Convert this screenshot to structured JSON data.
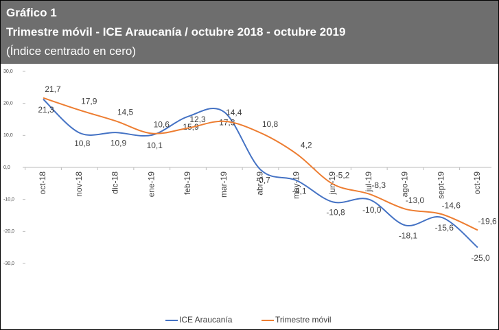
{
  "chart_data": {
    "type": "line",
    "label": "Gráfico 1",
    "title": "Trimestre móvil - ICE Araucanía / octubre 2018 - octubre 2019",
    "subtitle": "(Índice centrado en cero)",
    "categories": [
      "oct-18",
      "nov-18",
      "dic-18",
      "ene-19",
      "feb-19",
      "mar-19",
      "abr-19",
      "may-19",
      "jun-19",
      "jul-19",
      "ago-19",
      "sept-19",
      "oct-19"
    ],
    "series": [
      {
        "name": "ICE Araucanía",
        "color": "#4472c4",
        "values": [
          21.3,
          10.8,
          10.9,
          10.1,
          15.9,
          17.3,
          -0.7,
          -4.1,
          -10.8,
          -10.0,
          -18.1,
          -15.6,
          -25.0
        ],
        "value_labels": [
          "21,3",
          "10,8",
          "10,9",
          "10,1",
          "15,9",
          "17,3",
          "-0,7",
          "-4,1",
          "-10,8",
          "-10,0",
          "-18,1",
          "-15,6",
          "-25,0"
        ]
      },
      {
        "name": "Trimestre móvil",
        "color": "#ed7d31",
        "values": [
          21.7,
          17.9,
          14.5,
          10.6,
          12.3,
          14.4,
          10.8,
          4.2,
          -5.2,
          -8.3,
          -13.0,
          -14.6,
          -19.6
        ],
        "value_labels": [
          "21,7",
          "17,9",
          "14,5",
          "10,6",
          "12,3",
          "14,4",
          "10,8",
          "4,2",
          "-5,2",
          "-8,3",
          "-13,0",
          "-14,6",
          "-19,6"
        ]
      }
    ],
    "ylim": [
      -30,
      30
    ],
    "yticks": [
      {
        "value": 30,
        "label": "30,0"
      },
      {
        "value": 20,
        "label": "20,0"
      },
      {
        "value": 10,
        "label": "10,0"
      },
      {
        "value": 0,
        "label": "0,0"
      },
      {
        "value": -10,
        "label": "-10,0"
      },
      {
        "value": -20,
        "label": "-20,0"
      },
      {
        "value": -30,
        "label": "-30,0"
      }
    ],
    "legend": "bottom"
  }
}
